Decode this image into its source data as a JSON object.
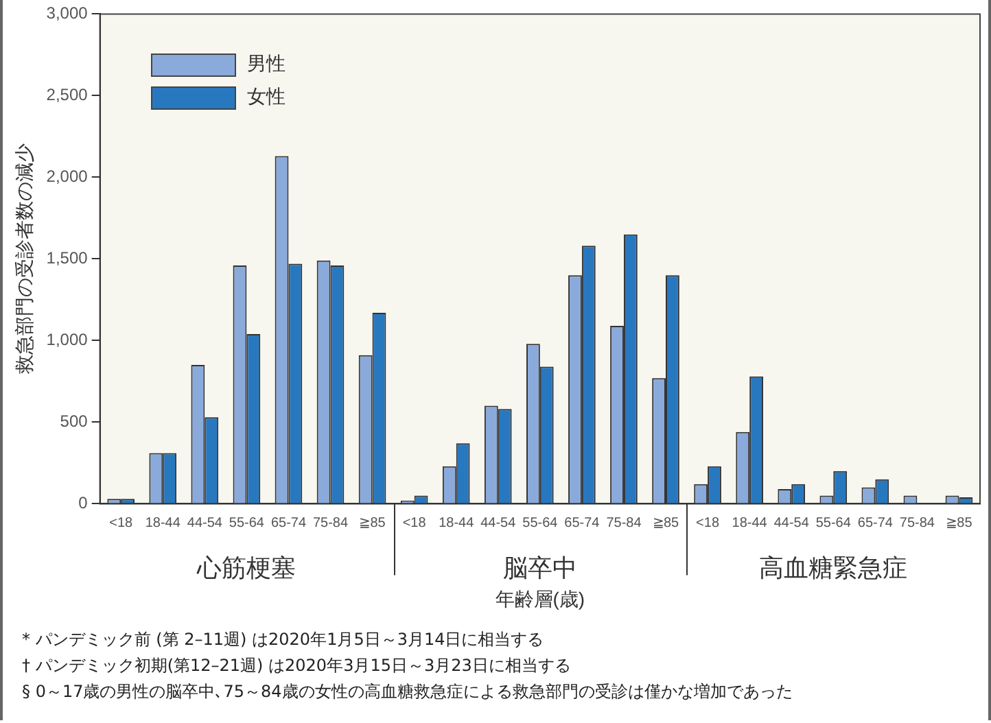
{
  "chart_data": {
    "type": "bar",
    "xlabel": "年齢層(歳)",
    "ylabel": "救急部門の受診者数の減少",
    "categories": [
      "<18",
      "18-44",
      "44-54",
      "55-64",
      "65-74",
      "75-84",
      "≧85",
      "<18",
      "18-44",
      "44-54",
      "55-64",
      "65-74",
      "75-84",
      "≧85",
      "<18",
      "18-44",
      "44-54",
      "55-64",
      "65-74",
      "75-84",
      "≧85"
    ],
    "series": [
      {
        "name": "男性",
        "color": "#8aaadb",
        "values": [
          30,
          310,
          850,
          1460,
          2130,
          1490,
          910,
          20,
          230,
          600,
          980,
          1400,
          1090,
          770,
          120,
          440,
          90,
          50,
          100,
          50,
          50
        ]
      },
      {
        "name": "女性",
        "color": "#2878c0",
        "values": [
          30,
          310,
          530,
          1040,
          1470,
          1460,
          1170,
          50,
          370,
          580,
          840,
          1580,
          1650,
          1400,
          230,
          780,
          120,
          200,
          150,
          0,
          40
        ]
      }
    ],
    "ylim": [
      0,
      3000
    ],
    "yticks": [
      0,
      500,
      {
        "value": 1000,
        "label": "1,000"
      },
      {
        "value": 1500,
        "label": "1,500"
      },
      {
        "value": 2000,
        "label": "2,000"
      },
      {
        "value": 2500,
        "label": "2,500"
      },
      {
        "value": 3000,
        "label": "3,000"
      }
    ],
    "grid": false,
    "legend": "top left",
    "annotations": [
      "心筋梗塞",
      "脳卒中",
      "高血糖緊急症",
      "* パンデミック前 (第 2–11週) は2020年1月5日～3月14日に相当する",
      "† パンデミック初期(第12–21週) は2020年3月15日～3月23日に相当する",
      "§ 0～17歳の男性の脳卒中､75～84歳の女性の高血糖救急症による救急部門の受診は僅かな増加であった"
    ]
  }
}
